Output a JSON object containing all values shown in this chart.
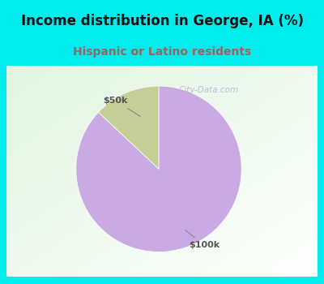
{
  "title": "Income distribution in George, IA (%)",
  "subtitle": "Hispanic or Latino residents",
  "slices": [
    {
      "label": "$100k",
      "value": 87,
      "color": "#C9AAE2"
    },
    {
      "label": "$50k",
      "value": 13,
      "color": "#C5CE96"
    }
  ],
  "start_angle": 90,
  "bg_color": "#00EDED",
  "title_color": "#111111",
  "subtitle_color": "#A06060",
  "label_fontsize": 8,
  "title_fontsize": 12,
  "subtitle_fontsize": 10,
  "watermark": "City-Data.com",
  "annotation_color": "#555555",
  "annotation_line_color": "#888888"
}
